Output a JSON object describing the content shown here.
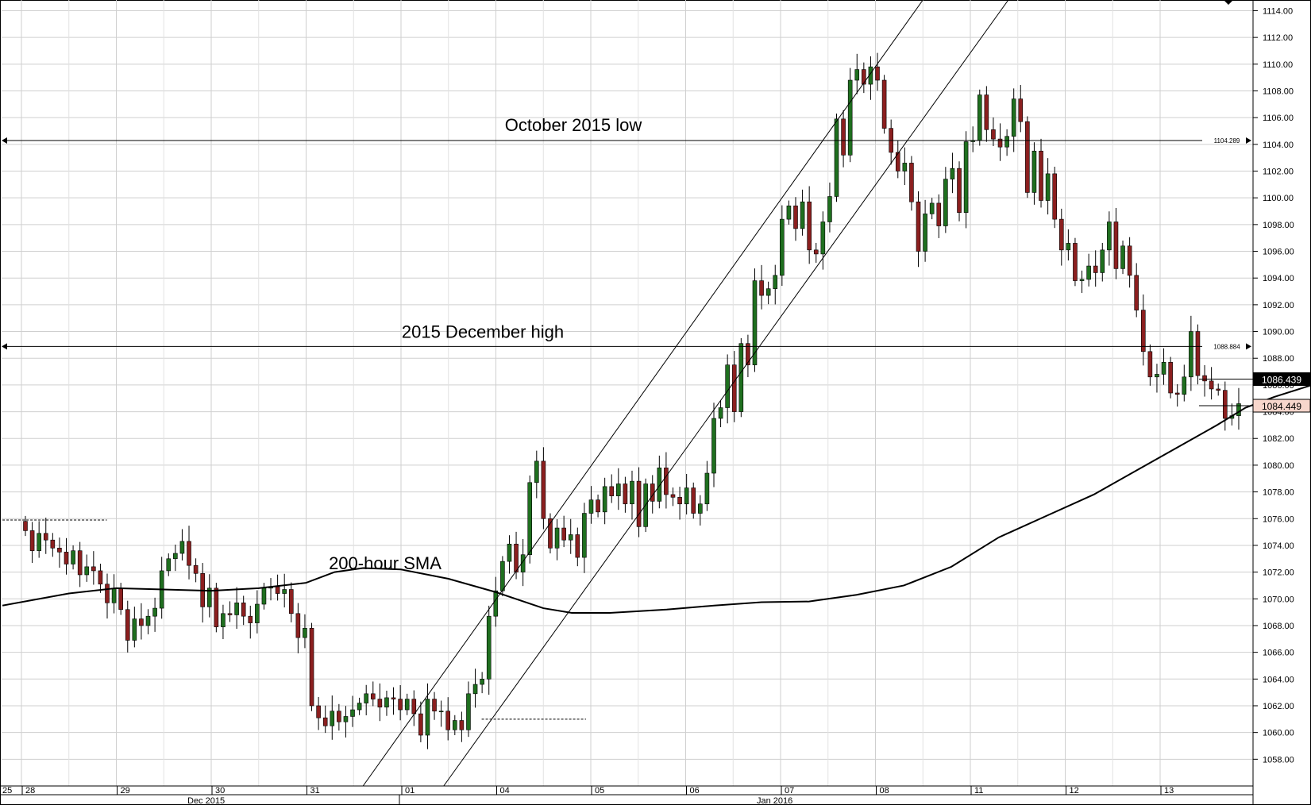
{
  "chart_data": {
    "type": "candlestick",
    "title": "",
    "xlabel": "",
    "ylabel": "",
    "ylim": [
      1056.0,
      1114.8
    ],
    "grid": true,
    "y_ticks": [
      "1058.00",
      "1060.00",
      "1062.00",
      "1064.00",
      "1066.00",
      "1068.00",
      "1070.00",
      "1072.00",
      "1074.00",
      "1076.00",
      "1078.00",
      "1080.00",
      "1082.00",
      "1084.00",
      "1086.00",
      "1088.00",
      "1090.00",
      "1092.00",
      "1094.00",
      "1096.00",
      "1098.00",
      "1100.00",
      "1102.00",
      "1104.00",
      "1106.00",
      "1108.00",
      "1110.00",
      "1112.00",
      "1114.00"
    ],
    "x_day_labels": [
      {
        "label": "25",
        "day": 0
      },
      {
        "label": "28",
        "day": 1
      },
      {
        "label": "29",
        "day": 2
      },
      {
        "label": "30",
        "day": 3
      },
      {
        "label": "31",
        "day": 4
      },
      {
        "label": "01",
        "day": 5
      },
      {
        "label": "04",
        "day": 6
      },
      {
        "label": "05",
        "day": 7
      },
      {
        "label": "06",
        "day": 8
      },
      {
        "label": "07",
        "day": 9
      },
      {
        "label": "08",
        "day": 10
      },
      {
        "label": "11",
        "day": 11
      },
      {
        "label": "12",
        "day": 12
      },
      {
        "label": "13",
        "day": 13
      }
    ],
    "x_month_labels": [
      {
        "label": "Dec 2015",
        "day": 3
      },
      {
        "label": "Jan 2016",
        "day": 9
      }
    ],
    "annotations": [
      {
        "text": "October 2015 low",
        "value": 1104.289,
        "value_label": "1104.289"
      },
      {
        "text": "2015 December high",
        "value": 1088.884,
        "value_label": "1088.884"
      },
      {
        "text": "200-hour SMA"
      }
    ],
    "price_labels": [
      {
        "text": "1086.439",
        "value": 1086.439,
        "style": "dark"
      },
      {
        "text": "1084.449",
        "value": 1084.449,
        "style": "light"
      }
    ],
    "sma200": {
      "name": "200-hour SMA",
      "points": [
        [
          -0.2,
          1069.5
        ],
        [
          0.5,
          1070.4
        ],
        [
          1.0,
          1070.8
        ],
        [
          1.5,
          1070.7
        ],
        [
          2.0,
          1070.6
        ],
        [
          2.5,
          1070.8
        ],
        [
          3.0,
          1071.2
        ],
        [
          3.3,
          1072.0
        ],
        [
          3.6,
          1072.3
        ],
        [
          4.0,
          1072.2
        ],
        [
          4.5,
          1071.5
        ],
        [
          5.0,
          1070.5
        ],
        [
          5.5,
          1069.3
        ],
        [
          5.8,
          1068.95
        ],
        [
          6.2,
          1068.95
        ],
        [
          6.8,
          1069.2
        ],
        [
          7.3,
          1069.5
        ],
        [
          7.8,
          1069.75
        ],
        [
          8.3,
          1069.8
        ],
        [
          8.8,
          1070.3
        ],
        [
          9.3,
          1071.0
        ],
        [
          9.8,
          1072.4
        ],
        [
          10.3,
          1074.6
        ],
        [
          10.8,
          1076.2
        ],
        [
          11.3,
          1077.8
        ],
        [
          11.8,
          1079.8
        ],
        [
          12.3,
          1081.8
        ],
        [
          12.6,
          1083.0
        ],
        [
          12.9,
          1084.3
        ],
        [
          13.2,
          1085.1
        ],
        [
          13.6,
          1086.0
        ],
        [
          14.0,
          1086.5
        ]
      ]
    },
    "channels": [
      {
        "points": [
          [
            3.6,
            1056.0
          ],
          [
            9.5,
            1114.8
          ]
        ]
      },
      {
        "points": [
          [
            4.45,
            1056.0
          ],
          [
            10.4,
            1114.8
          ]
        ]
      }
    ],
    "gap_line": [
      [
        4.85,
        1061.0
      ],
      [
        5.95,
        1061.0
      ]
    ],
    "pre_line": [
      [
        -0.2,
        1075.9
      ],
      [
        0.9,
        1075.9
      ]
    ],
    "open_close": [
      1075.8,
      1075.1,
      1073.6,
      1074.9,
      1074.4,
      1073.8,
      1073.5,
      1072.6,
      1073.6,
      1071.8,
      1072.4,
      1072.1,
      1071.1,
      1069.7,
      1070.8,
      1069.2,
      1066.9,
      1068.5,
      1068.0,
      1068.7,
      1069.3,
      1072.1,
      1073.0,
      1073.4,
      1074.3,
      1072.5,
      1071.9,
      1069.4,
      1070.8,
      1067.9,
      1068.9,
      1068.8,
      1069.7,
      1068.7,
      1068.2,
      1069.6,
      1070.8,
      1070.9,
      1070.4,
      1070.7,
      1068.9,
      1067.1,
      1067.8,
      1062.0,
      1061.1,
      1060.5,
      1061.6,
      1060.8,
      1061.2,
      1061.7,
      1062.2,
      1062.9,
      1062.5,
      1061.9,
      1062.6,
      1062.5,
      1061.7,
      1062.5,
      1061.4,
      1059.8,
      1062.5,
      1061.6,
      1061.6,
      1060.2,
      1060.9,
      1060.2,
      1062.9,
      1063.6,
      1064.0,
      1068.7,
      1070.6,
      1072.8,
      1074.1,
      1072.0,
      1073.3,
      1078.7,
      1080.3,
      1076.0,
      1073.8,
      1075.3,
      1074.4,
      1074.8,
      1073.1,
      1076.4,
      1077.4,
      1076.5,
      1078.4,
      1077.7,
      1078.6,
      1077.1,
      1078.8,
      1075.4,
      1078.6,
      1077.3,
      1079.8,
      1077.8,
      1077.6,
      1077.1,
      1078.3,
      1076.4,
      1077.1,
      1079.4,
      1083.5,
      1084.3,
      1087.5,
      1084.0,
      1089.1,
      1087.5,
      1093.8,
      1092.7,
      1093.2,
      1094.2,
      1098.4,
      1099.4,
      1097.7,
      1099.7,
      1096.1,
      1095.8,
      1098.2,
      1100.1,
      1105.9,
      1103.2,
      1108.8,
      1109.6,
      1108.5,
      1109.8,
      1108.8,
      1105.2,
      1103.4,
      1102.0,
      1102.6,
      1099.7,
      1096.0,
      1098.8,
      1099.6,
      1097.9,
      1101.4,
      1102.2,
      1098.9,
      1104.2,
      1104.3,
      1107.7,
      1105.1,
      1104.4,
      1103.8,
      1104.6,
      1107.4,
      1105.7,
      1100.4,
      1103.5,
      1099.8,
      1101.8,
      1098.4,
      1096.1,
      1096.6,
      1093.8,
      1093.9,
      1094.9,
      1094.4,
      1096.1,
      1098.2,
      1094.7,
      1096.4,
      1094.2,
      1091.6,
      1088.5,
      1086.6,
      1086.8,
      1087.7,
      1085.4,
      1085.3,
      1086.6,
      1090.0,
      1086.7,
      1086.3,
      1085.7,
      1085.6,
      1083.5,
      1083.7,
      1084.6
    ]
  },
  "colors": {
    "bull": "#1f6f1f",
    "bear": "#8b1f1f",
    "grid": "#cfcfcf",
    "axis": "#000000",
    "price_label_dark_bg": "#000000",
    "price_label_light_bg": "#f7d6cc"
  }
}
